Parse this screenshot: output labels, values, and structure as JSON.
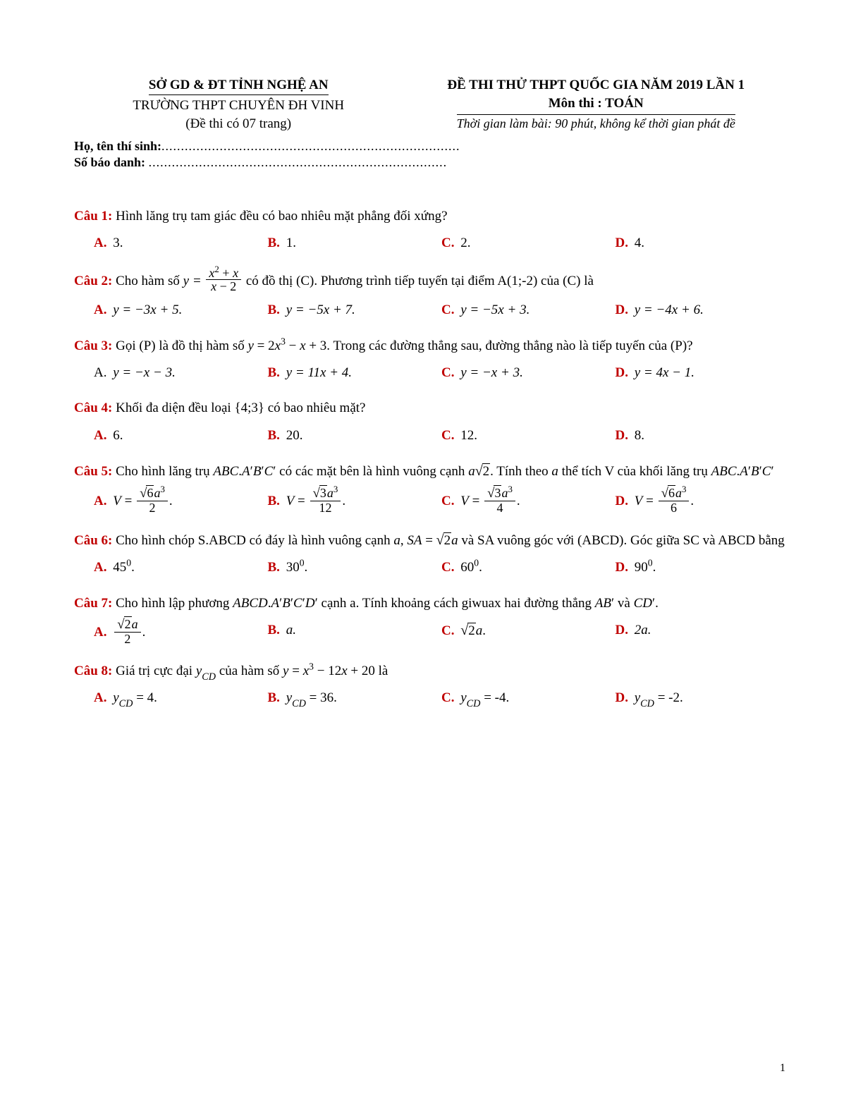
{
  "header": {
    "left": {
      "line1": "SỞ GD & ĐT TỈNH NGHỆ AN",
      "line2": "TRƯỜNG THPT CHUYÊN ĐH VINH",
      "line3": "(Đề thi có 07 trang)"
    },
    "right": {
      "line1": "ĐỀ THI THỬ THPT QUỐC GIA NĂM 2019 LẦN 1",
      "line2": "Môn thi : TOÁN",
      "line3": "Thời gian làm bài: 90 phút, không kể thời gian phát đề"
    }
  },
  "info": {
    "name_label": "Họ, tên thí sinh:",
    "id_label": "Số báo danh:",
    "dots": "............................................................................."
  },
  "q1": {
    "label": "Câu 1:",
    "text": " Hình lăng trụ tam giác đều có bao nhiêu mặt phẳng đối xứng?",
    "a": "3.",
    "b": "1.",
    "c": "2.",
    "d": "4."
  },
  "q2": {
    "label": "Câu 2:",
    "text_pre": " Cho hàm số  ",
    "text_post": "  có đồ thị (C). Phương trình tiếp tuyến tại điểm A(1;-2) của (C) là",
    "a": "y = −3x + 5.",
    "b": "y = −5x + 7.",
    "c": "y = −5x + 3.",
    "d": "y = −4x + 6."
  },
  "q3": {
    "label": "Câu 3:",
    "text": " Gọi (P) là đồ thị hàm số  y = 2x³ − x + 3.  Trong các đường thẳng sau, đường thẳng nào là tiếp tuyến của (P)?",
    "a": "y = −x − 3.",
    "b": "y = 11x + 4.",
    "c": "y = −x + 3.",
    "d": "y = 4x − 1."
  },
  "q4": {
    "label": "Câu 4:",
    "text": " Khối đa diện đều loại {4;3} có bao nhiêu mặt?",
    "a": "6.",
    "b": "20.",
    "c": "12.",
    "d": "8."
  },
  "q5": {
    "label": "Câu 5:",
    "text_pre": " Cho hình lăng trụ  ",
    "prism1": "ABC.A′B′C′",
    "text_mid": "  có các mặt bên là hình vuông cạnh  ",
    "text_post": ".  Tính theo  a  thể tích V của khối lăng trụ  ",
    "prism2": "ABC.A′B′C′"
  },
  "q6": {
    "label": "Câu 6:",
    "text_pre": " Cho hình chóp S.ABCD có đáy là hình vuông cạnh  ",
    "text_post": "  và SA vuông góc với (ABCD). Góc giữa SC và ABCD bằng",
    "a": "45",
    "b": "30",
    "c": "60",
    "d": "90"
  },
  "q7": {
    "label": "Câu 7:",
    "text": " Cho hình lập phương  ABCD.A′B′C′D′  cạnh a. Tính khoảng cách giwuax hai đường thẳng  AB′  và  CD′.",
    "b": "a.",
    "d": "2a."
  },
  "q8": {
    "label": "Câu 8:",
    "text_pre": " Giá trị cực đại  ",
    "ycd": "y",
    "text_mid": "  của hàm số  ",
    "func": "y = x³ − 12x + 20",
    "text_post": "  là"
  },
  "optlabels": {
    "a": "A.",
    "b": "B.",
    "c": "C.",
    "d": "D."
  },
  "pagenum": "1"
}
